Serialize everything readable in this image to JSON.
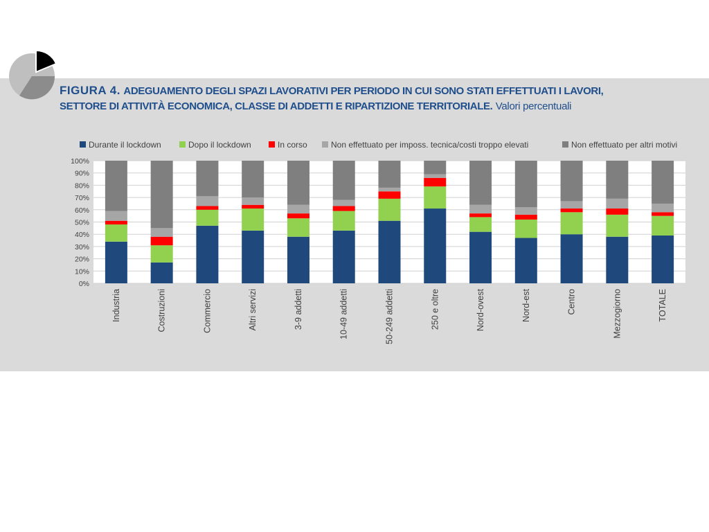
{
  "figure": {
    "label": "FIGURA 4.",
    "title_line1": "ADEGUAMENTO DEGLI SPAZI LAVORATIVI PER PERIODO IN CUI SONO STATI EFFETTUATI I LAVORI,",
    "title_line2": "SETTORE DI ATTIVITÀ ECONOMICA, CLASSE DI ADDETTI E RIPARTIZIONE TERRITORIALE.",
    "subtitle": "Valori percentuali"
  },
  "logo": {
    "icon": "pie-chart-icon"
  },
  "chart_data": {
    "type": "bar",
    "stacked": true,
    "title": "ADEGUAMENTO DEGLI SPAZI LAVORATIVI PER PERIODO IN CUI SONO STATI EFFETTUATI I LAVORI, SETTORE DI ATTIVITÀ ECONOMICA, CLASSE DI ADDETTI E RIPARTIZIONE TERRITORIALE.",
    "subtitle": "Valori percentuali",
    "xlabel": "",
    "ylabel": "",
    "ylim": [
      0,
      100
    ],
    "y_ticks": [
      "0%",
      "10%",
      "20%",
      "30%",
      "40%",
      "50%",
      "60%",
      "70%",
      "80%",
      "90%",
      "100%"
    ],
    "grid": true,
    "legend_position": "top",
    "categories": [
      "Industria",
      "Costruzioni",
      "Commercio",
      "Altri servizi",
      "3-9 addetti",
      "10-49 addetti",
      "50-249 addetti",
      "250 e oltre",
      "Nord-ovest",
      "Nord-est",
      "Centro",
      "Mezzogiorno",
      "TOTALE"
    ],
    "series": [
      {
        "name": "Durante il lockdown",
        "color": "#1f497d",
        "values": [
          34,
          17,
          47,
          43,
          38,
          43,
          51,
          61,
          42,
          37,
          40,
          38,
          39
        ]
      },
      {
        "name": "Dopo il lockdown",
        "color": "#92d050",
        "values": [
          14,
          14,
          13,
          18,
          15,
          16,
          18,
          18,
          12,
          15,
          18,
          18,
          16
        ]
      },
      {
        "name": "In corso",
        "color": "#ff0000",
        "values": [
          3,
          7,
          3,
          3,
          4,
          4,
          6,
          7,
          3,
          4,
          3,
          5,
          3
        ]
      },
      {
        "name": "Non effettuato per imposs. tecnica/costi troppo elevati",
        "color": "#a6a6a6",
        "values": [
          8,
          7,
          8,
          6,
          7,
          5,
          3,
          3,
          7,
          6,
          6,
          8,
          7
        ]
      },
      {
        "name": "Non effettuato per altri motivi",
        "color": "#7f7f7f",
        "values": [
          41,
          55,
          29,
          30,
          36,
          32,
          22,
          11,
          36,
          38,
          33,
          31,
          35
        ]
      }
    ]
  }
}
